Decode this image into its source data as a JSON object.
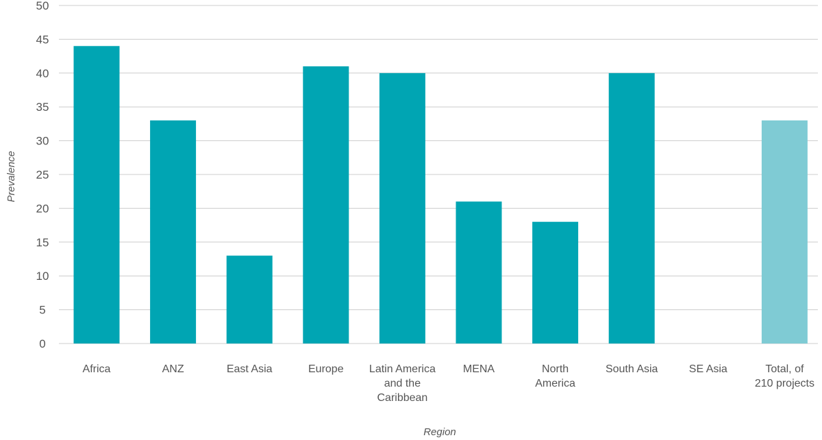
{
  "chart_data": {
    "type": "bar",
    "title": "",
    "xlabel": "Region",
    "ylabel": "Prevalence",
    "ylim": [
      0,
      50
    ],
    "yticks": [
      0,
      5,
      10,
      15,
      20,
      25,
      30,
      35,
      40,
      45,
      50
    ],
    "grid": true,
    "categories": [
      [
        "Africa"
      ],
      [
        "ANZ"
      ],
      [
        "East Asia"
      ],
      [
        "Europe"
      ],
      [
        "Latin America",
        "and the",
        "Caribbean"
      ],
      [
        "MENA"
      ],
      [
        "North",
        "America"
      ],
      [
        "South Asia"
      ],
      [
        "SE Asia"
      ],
      [
        "Total, of",
        "210 projects"
      ]
    ],
    "values": [
      44,
      33,
      13,
      41,
      40,
      21,
      18,
      40,
      0,
      33
    ],
    "colors": {
      "bar": "#00a5b3",
      "total_bar": "#7fcbd4",
      "grid": "#cccccc",
      "text": "#555555"
    }
  }
}
